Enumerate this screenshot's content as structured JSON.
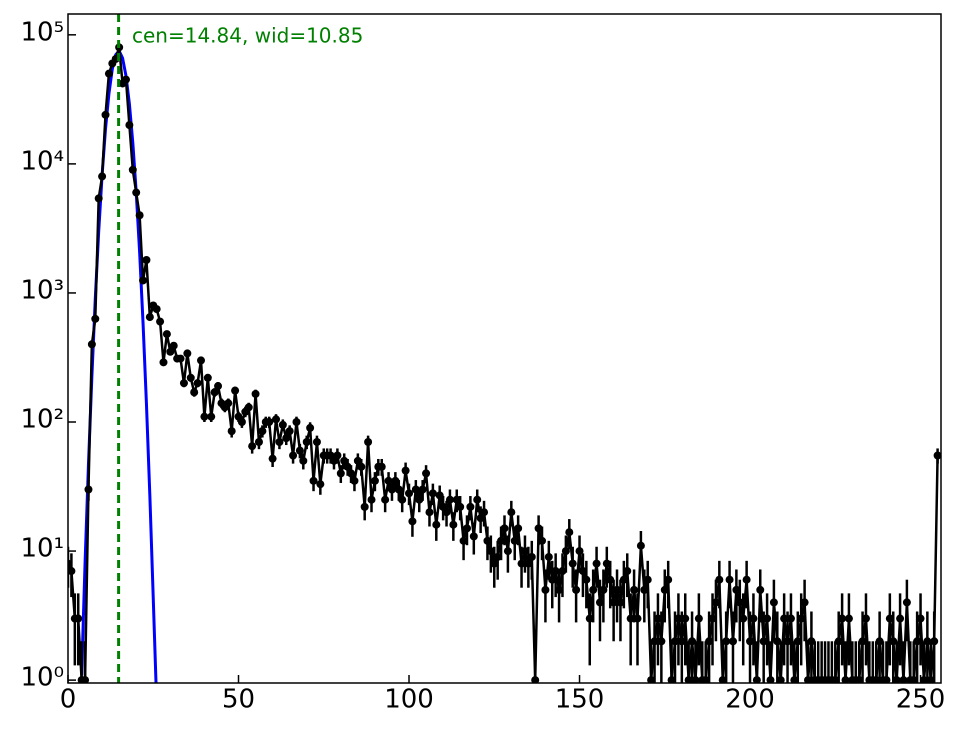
{
  "chart_data": {
    "type": "scatter",
    "annotation": "cen=14.84, wid=10.85",
    "vline_x": 14.84,
    "vline_color": "#008000",
    "color": "#000000",
    "log_y": true,
    "xlim": [
      0,
      256
    ],
    "ylim": [
      0.95,
      145000
    ],
    "xticks": [
      0,
      50,
      100,
      150,
      200,
      250
    ],
    "yticks": [
      {
        "value": 1,
        "label": "10⁰"
      },
      {
        "value": 10,
        "label": "10¹"
      },
      {
        "value": 100,
        "label": "10²"
      },
      {
        "value": 1000,
        "label": "10³"
      },
      {
        "value": 10000,
        "label": "10⁴"
      },
      {
        "value": 100000,
        "label": "10⁵"
      }
    ],
    "x": [
      0,
      1,
      2,
      3,
      4,
      5,
      6,
      7,
      8,
      9,
      10,
      11,
      12,
      13,
      14,
      15,
      16,
      17,
      18,
      19,
      20,
      21,
      22,
      23,
      24,
      25,
      26,
      27,
      28,
      29,
      30,
      31,
      32,
      33,
      34,
      35,
      36,
      37,
      38,
      39,
      40,
      41,
      42,
      43,
      44,
      45,
      46,
      47,
      48,
      49,
      50,
      51,
      52,
      53,
      54,
      55,
      56,
      57,
      58,
      59,
      60,
      61,
      62,
      63,
      64,
      65,
      66,
      67,
      68,
      69,
      70,
      71,
      72,
      73,
      74,
      75,
      76,
      77,
      78,
      79,
      80,
      81,
      82,
      83,
      84,
      85,
      86,
      87,
      88,
      89,
      90,
      91,
      92,
      93,
      94,
      95,
      96,
      97,
      98,
      99,
      100,
      101,
      102,
      103,
      104,
      105,
      106,
      107,
      108,
      109,
      110,
      111,
      112,
      113,
      114,
      115,
      116,
      117,
      118,
      119,
      120,
      121,
      122,
      123,
      124,
      125,
      126,
      127,
      128,
      129,
      130,
      131,
      132,
      133,
      134,
      135,
      136,
      137,
      138,
      139,
      140,
      141,
      142,
      143,
      144,
      145,
      146,
      147,
      148,
      149,
      150,
      151,
      152,
      153,
      154,
      155,
      156,
      157,
      158,
      159,
      160,
      161,
      162,
      163,
      164,
      165,
      166,
      167,
      168,
      169,
      170,
      171,
      172,
      173,
      174,
      175,
      176,
      177,
      178,
      179,
      180,
      181,
      182,
      183,
      184,
      185,
      186,
      187,
      188,
      189,
      190,
      191,
      192,
      193,
      194,
      195,
      196,
      197,
      198,
      199,
      200,
      201,
      202,
      203,
      204,
      205,
      206,
      207,
      208,
      209,
      210,
      211,
      212,
      213,
      214,
      215,
      216,
      217,
      218,
      219,
      220,
      221,
      222,
      223,
      224,
      225,
      226,
      227,
      228,
      229,
      230,
      231,
      232,
      233,
      234,
      235,
      236,
      237,
      238,
      239,
      240,
      241,
      242,
      243,
      244,
      245,
      246,
      247,
      248,
      249,
      250,
      251,
      252,
      253,
      254,
      255
    ],
    "values": [
      8,
      7,
      3,
      3,
      1,
      1,
      30,
      400,
      630,
      5400,
      8000,
      24000,
      50000,
      60000,
      65000,
      80000,
      42000,
      45000,
      20000,
      9000,
      6000,
      4000,
      1250,
      1800,
      650,
      800,
      750,
      600,
      290,
      480,
      350,
      390,
      310,
      310,
      200,
      340,
      220,
      170,
      200,
      300,
      110,
      220,
      110,
      170,
      190,
      140,
      130,
      140,
      85,
      175,
      110,
      100,
      120,
      130,
      65,
      165,
      70,
      85,
      100,
      100,
      52,
      105,
      70,
      95,
      75,
      85,
      55,
      100,
      60,
      50,
      70,
      90,
      35,
      70,
      33,
      55,
      55,
      55,
      50,
      55,
      40,
      50,
      45,
      40,
      35,
      50,
      45,
      22,
      70,
      25,
      35,
      45,
      45,
      25,
      35,
      30,
      35,
      30,
      25,
      42,
      28,
      17,
      30,
      25,
      30,
      40,
      20,
      28,
      16,
      27,
      22,
      20,
      25,
      16,
      25,
      22,
      12,
      15,
      22,
      13,
      25,
      18,
      20,
      12,
      10,
      8,
      9,
      12,
      15,
      10,
      20,
      12,
      15,
      8,
      10,
      8,
      9,
      1,
      15,
      12,
      5,
      9,
      6,
      7,
      5,
      7,
      10,
      14,
      8,
      5,
      10,
      7,
      6,
      3,
      5,
      8,
      4,
      5,
      8,
      6,
      4,
      5,
      4,
      6,
      7,
      3,
      5,
      3,
      11,
      5,
      6,
      1,
      2,
      3,
      2,
      5,
      6,
      1,
      2,
      3,
      2,
      3,
      1,
      2,
      1,
      3,
      1,
      1,
      2,
      3,
      4,
      6,
      1,
      2,
      6,
      2,
      5,
      4,
      3,
      6,
      2,
      3,
      1,
      5,
      2,
      3,
      1,
      4,
      2,
      1,
      3,
      2,
      3,
      1,
      2,
      3,
      4,
      1,
      2,
      1,
      1,
      1,
      1,
      1,
      1,
      1,
      2,
      3,
      1,
      3,
      1,
      1,
      1,
      2,
      3,
      1,
      1,
      1,
      2,
      1,
      1,
      3,
      2,
      1,
      3,
      1,
      4,
      1,
      1,
      2,
      3,
      1,
      2,
      1,
      2,
      55
    ],
    "errors": [
      2.8,
      2.6,
      1.7,
      1.7,
      1,
      1,
      5.5,
      20,
      25,
      73,
      89,
      155,
      224,
      245,
      255,
      283,
      205,
      212,
      141,
      95,
      77,
      63,
      35,
      42,
      25,
      28,
      27,
      24,
      17,
      22,
      19,
      20,
      18,
      18,
      14,
      18,
      15,
      13,
      14,
      17,
      10,
      15,
      10,
      13,
      14,
      12,
      11,
      12,
      9.2,
      13,
      10,
      10,
      11,
      11,
      8.1,
      13,
      8.4,
      9.2,
      10,
      10,
      7.2,
      10,
      8.4,
      9.7,
      8.7,
      9.2,
      7.4,
      10,
      7.7,
      7.1,
      8.4,
      9.5,
      5.9,
      8.4,
      5.7,
      7.4,
      7.4,
      7.4,
      7.1,
      7.4,
      6.3,
      7.1,
      6.7,
      6.3,
      5.9,
      7.1,
      6.7,
      4.7,
      8.4,
      5,
      5.9,
      6.7,
      6.7,
      5,
      5.9,
      5.5,
      5.9,
      5.5,
      5,
      6.5,
      5.3,
      4.1,
      5.5,
      5,
      5.5,
      6.3,
      4.5,
      5.3,
      4,
      5.2,
      4.7,
      4.5,
      5,
      4,
      5,
      4.7,
      3.5,
      3.9,
      4.7,
      3.6,
      5,
      4.2,
      4.5,
      3.5,
      3.2,
      2.8,
      3,
      3.5,
      3.9,
      3.2,
      4.5,
      3.5,
      3.9,
      2.8,
      3.2,
      2.8,
      3,
      1,
      3.9,
      3.5,
      2.2,
      3,
      2.4,
      2.6,
      2.2,
      2.6,
      3.2,
      3.7,
      2.8,
      2.2,
      3.2,
      2.6,
      2.4,
      1.7,
      2.2,
      2.8,
      2,
      2.2,
      2.8,
      2.4,
      2,
      2.2,
      2,
      2.4,
      2.6,
      1.7,
      2.2,
      1.7,
      3.3,
      2.2,
      2.4,
      1,
      1.4,
      1.7,
      1.4,
      2.2,
      2.4,
      1,
      1.4,
      1.7,
      1.4,
      1.7,
      1,
      1.4,
      1,
      1.7,
      1,
      1,
      1.4,
      1.7,
      2,
      2.4,
      1,
      1.4,
      2.4,
      1.4,
      2.2,
      2,
      1.7,
      2.4,
      1.4,
      1.7,
      1,
      2.2,
      1.4,
      1.7,
      1,
      2,
      1.4,
      1,
      1.7,
      1.4,
      1.7,
      1,
      1.4,
      1.7,
      2,
      1,
      1.4,
      1,
      1,
      1,
      1,
      1,
      1,
      1,
      1.4,
      1.7,
      1,
      1.7,
      1,
      1,
      1,
      1.4,
      1.7,
      1,
      1,
      1,
      1.4,
      1,
      1,
      1.7,
      1.4,
      1,
      1.7,
      1,
      2,
      1,
      1,
      1.4,
      1.7,
      1,
      1.4,
      1,
      1.4,
      7.4
    ],
    "fit": {
      "color": "#0000ff",
      "x": [
        4,
        5,
        6,
        7,
        8,
        9,
        10,
        11,
        12,
        13,
        14,
        15,
        16,
        17,
        18,
        19,
        20,
        21,
        22,
        23,
        24,
        25,
        26
      ],
      "values": [
        1.1,
        8,
        47,
        225,
        903,
        2990,
        8200,
        18700,
        35000,
        54500,
        70100,
        75000,
        66000,
        48200,
        29200,
        14600,
        6040,
        2080,
        589,
        139,
        27,
        4.3,
        0.58
      ]
    }
  }
}
